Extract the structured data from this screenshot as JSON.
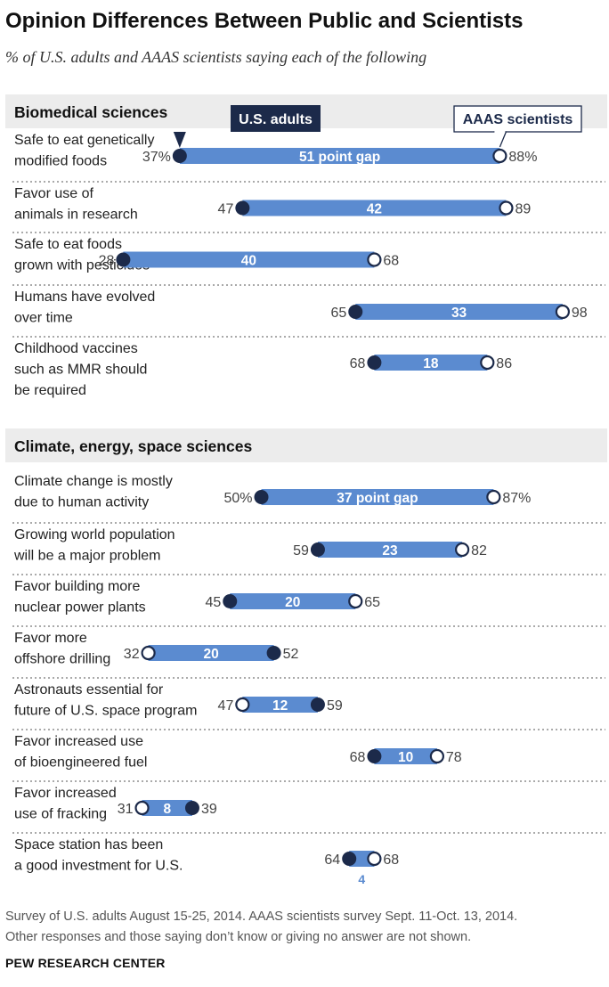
{
  "title": "Opinion Differences Between Public and Scientists",
  "subtitle": "% of U.S. adults and AAAS scientists saying each of the following",
  "legend": {
    "us_adults": "U.S. adults",
    "scientists": "AAAS scientists"
  },
  "colors": {
    "bar": "#5b8bd0",
    "dot": "#1c2a4a",
    "section_bg": "#ececec",
    "text": "#222222"
  },
  "chart_data": {
    "type": "dot-range",
    "series_names": [
      "U.S. adults",
      "AAAS scientists"
    ],
    "xlim": [
      0,
      100
    ],
    "sections": [
      {
        "name": "Biomedical sciences",
        "items": [
          {
            "lines": [
              "Safe to eat genetically",
              "modified foods"
            ],
            "public": 37,
            "scientists": 88,
            "gap_label": "51 point gap",
            "public_label": "37%",
            "scientists_label": "88%"
          },
          {
            "lines": [
              "Favor use of",
              "animals in research"
            ],
            "public": 47,
            "scientists": 89,
            "gap_label": "42",
            "public_label": "47",
            "scientists_label": "89"
          },
          {
            "lines": [
              "Safe to eat foods",
              "grown with pesticides"
            ],
            "public": 28,
            "scientists": 68,
            "gap_label": "40",
            "public_label": "28",
            "scientists_label": "68"
          },
          {
            "lines": [
              "Humans have evolved",
              "over time"
            ],
            "public": 65,
            "scientists": 98,
            "gap_label": "33",
            "public_label": "65",
            "scientists_label": "98"
          },
          {
            "lines": [
              "Childhood vaccines",
              "such as MMR should",
              "be required"
            ],
            "public": 68,
            "scientists": 86,
            "gap_label": "18",
            "public_label": "68",
            "scientists_label": "86"
          }
        ]
      },
      {
        "name": "Climate, energy, space sciences",
        "items": [
          {
            "lines": [
              "Climate change is mostly",
              "due to human activity"
            ],
            "public": 50,
            "scientists": 87,
            "gap_label": "37 point gap",
            "public_label": "50%",
            "scientists_label": "87%"
          },
          {
            "lines": [
              "Growing world population",
              "will be a major problem"
            ],
            "public": 59,
            "scientists": 82,
            "gap_label": "23",
            "public_label": "59",
            "scientists_label": "82"
          },
          {
            "lines": [
              "Favor building more",
              "nuclear power plants"
            ],
            "public": 45,
            "scientists": 65,
            "gap_label": "20",
            "public_label": "45",
            "scientists_label": "65"
          },
          {
            "lines": [
              "Favor more",
              "offshore drilling"
            ],
            "public": 52,
            "scientists": 32,
            "gap_label": "20",
            "public_label": "52",
            "scientists_label": "32"
          },
          {
            "lines": [
              "Astronauts essential for",
              "future of U.S. space program"
            ],
            "public": 59,
            "scientists": 47,
            "gap_label": "12",
            "public_label": "59",
            "scientists_label": "47"
          },
          {
            "lines": [
              "Favor increased use",
              "of bioengineered fuel"
            ],
            "public": 68,
            "scientists": 78,
            "gap_label": "10",
            "public_label": "68",
            "scientists_label": "78"
          },
          {
            "lines": [
              "Favor increased",
              "use of fracking"
            ],
            "public": 39,
            "scientists": 31,
            "gap_label": "8",
            "public_label": "39",
            "scientists_label": "31"
          },
          {
            "lines": [
              "Space station has been",
              "a good investment for U.S."
            ],
            "public": 64,
            "scientists": 68,
            "gap_label": "4",
            "gap_below": true,
            "public_label": "64",
            "scientists_label": "68"
          }
        ]
      }
    ]
  },
  "footer": {
    "note_line1": "Survey of U.S. adults August 15-25, 2014. AAAS scientists survey Sept. 11-Oct. 13, 2014.",
    "note_line2": "Other responses and those saying don’t know or giving no answer are not shown.",
    "source": "PEW RESEARCH CENTER"
  }
}
